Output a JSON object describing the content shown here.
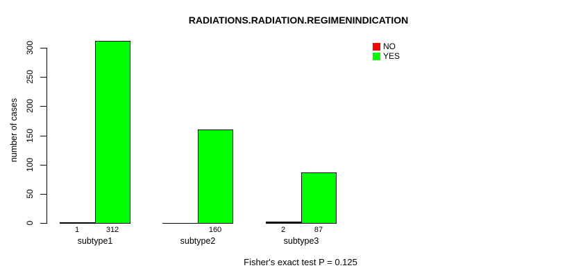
{
  "chart_data": {
    "type": "bar",
    "title": "RADIATIONS.RADIATION.REGIMENINDICATION",
    "ylabel": "number of cases",
    "xlabel": "",
    "categories": [
      "subtype1",
      "subtype2",
      "subtype3"
    ],
    "series": [
      {
        "name": "NO",
        "color": "#FF0000",
        "values": [
          1,
          0,
          2
        ],
        "bar_labels": [
          "1",
          "",
          "2"
        ]
      },
      {
        "name": "YES",
        "color": "#00FF00",
        "values": [
          312,
          160,
          87
        ],
        "bar_labels": [
          "312",
          "160",
          "87"
        ]
      }
    ],
    "ylim": [
      0,
      300
    ],
    "yticks": [
      0,
      50,
      100,
      150,
      200,
      250,
      300
    ],
    "grid": false,
    "legend": {
      "position": "top-right",
      "entries": [
        {
          "label": "NO",
          "color": "#FF0000"
        },
        {
          "label": "YES",
          "color": "#00FF00"
        }
      ]
    },
    "footer": "Fisher's exact test P = 0.125"
  }
}
